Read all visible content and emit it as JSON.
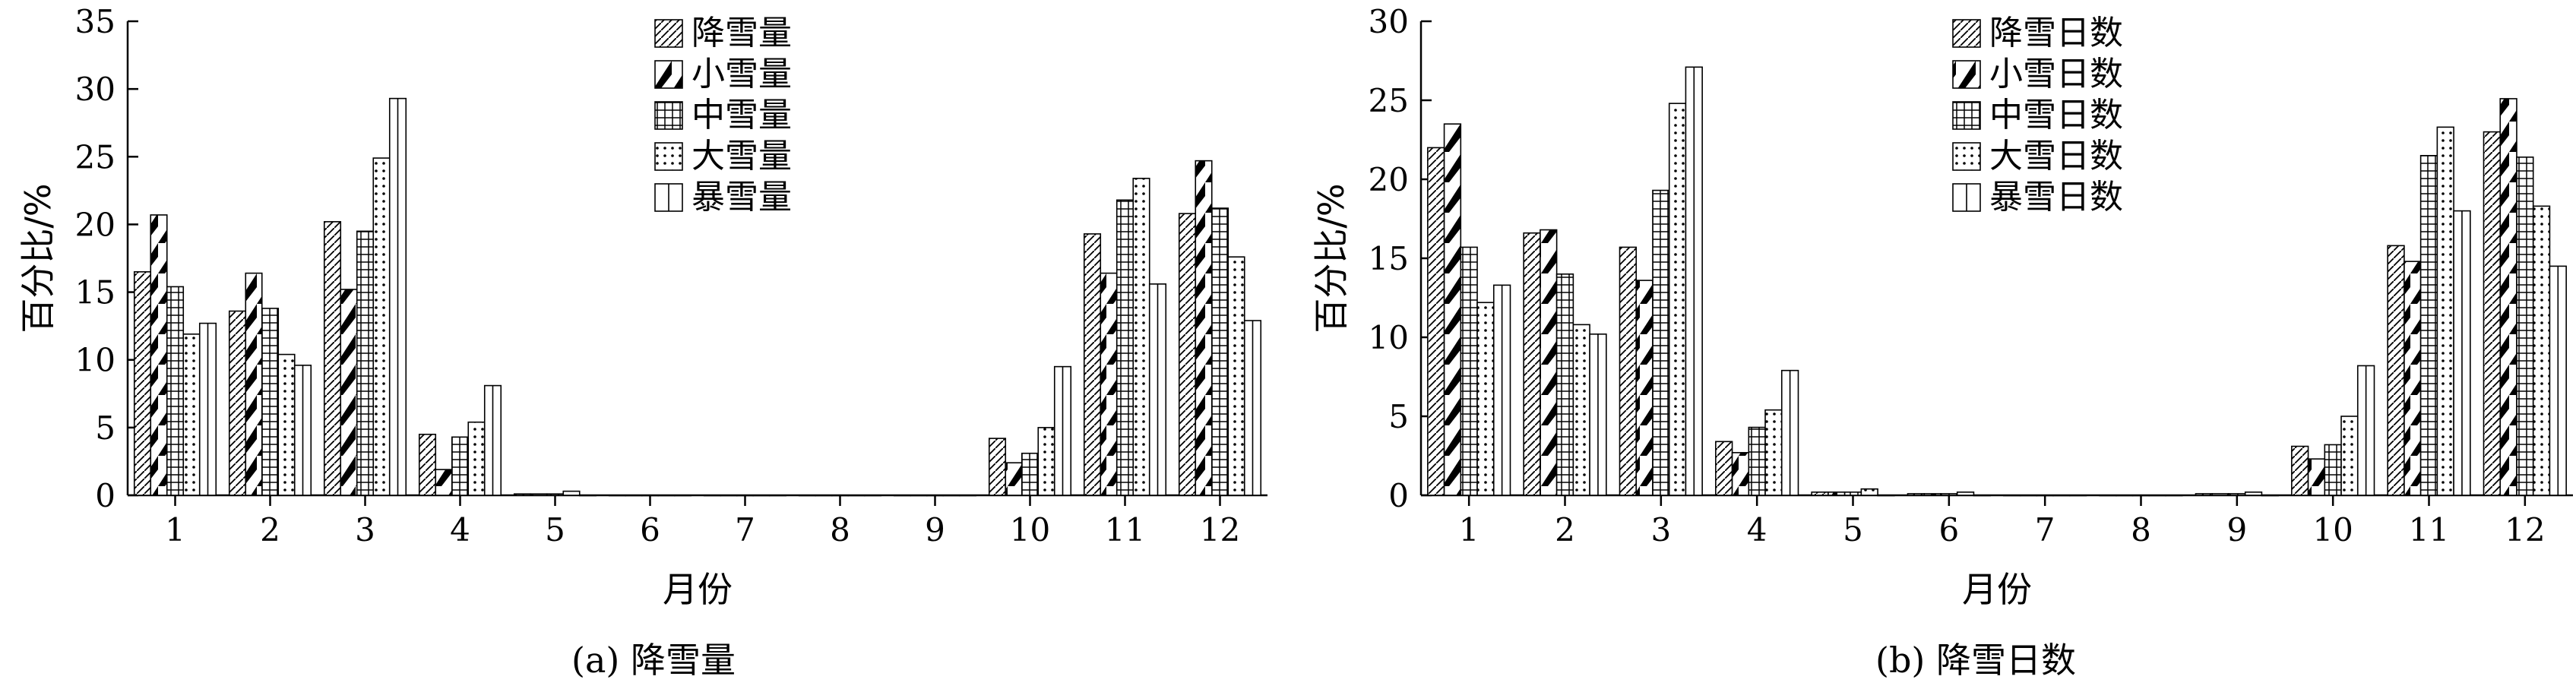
{
  "chart_data": [
    {
      "type": "bar",
      "caption": "(a) 降雪量",
      "ylabel": "百分比/%",
      "xlabel": "月份",
      "ylim": [
        0,
        35
      ],
      "yticks": [
        0,
        5,
        10,
        15,
        20,
        25,
        30,
        35
      ],
      "categories": [
        "1",
        "2",
        "3",
        "4",
        "5",
        "6",
        "7",
        "8",
        "9",
        "10",
        "11",
        "12"
      ],
      "legend_position": "top-center",
      "series": [
        {
          "name": "降雪量",
          "pattern": "diagonal-hatch",
          "values": [
            16.5,
            13.6,
            20.2,
            4.5,
            0.1,
            0,
            0,
            0,
            0,
            4.2,
            19.3,
            20.8
          ]
        },
        {
          "name": "小雪量",
          "pattern": "dark-diagonal",
          "values": [
            20.7,
            16.4,
            15.2,
            1.9,
            0.1,
            0,
            0,
            0,
            0,
            2.4,
            16.4,
            24.7
          ]
        },
        {
          "name": "中雪量",
          "pattern": "grid",
          "values": [
            15.4,
            13.8,
            19.5,
            4.3,
            0.1,
            0,
            0,
            0,
            0,
            3.1,
            21.8,
            21.2
          ]
        },
        {
          "name": "大雪量",
          "pattern": "dots",
          "values": [
            11.9,
            10.4,
            24.9,
            5.4,
            0.3,
            0,
            0,
            0,
            0,
            5.0,
            23.4,
            17.6
          ]
        },
        {
          "name": "暴雪量",
          "pattern": "vertical-half",
          "values": [
            12.7,
            9.6,
            29.3,
            8.1,
            0,
            0,
            0,
            0,
            0,
            9.5,
            15.6,
            12.9
          ]
        }
      ]
    },
    {
      "type": "bar",
      "caption": "(b) 降雪日数",
      "ylabel": "百分比/%",
      "xlabel": "月份",
      "ylim": [
        0,
        30
      ],
      "yticks": [
        0,
        5,
        10,
        15,
        20,
        25,
        30
      ],
      "categories": [
        "1",
        "2",
        "3",
        "4",
        "5",
        "6",
        "7",
        "8",
        "9",
        "10",
        "11",
        "12"
      ],
      "legend_position": "top-center",
      "series": [
        {
          "name": "降雪日数",
          "pattern": "diagonal-hatch",
          "values": [
            22.0,
            16.6,
            15.7,
            3.4,
            0.2,
            0.1,
            0,
            0,
            0.1,
            3.1,
            15.8,
            23.0
          ]
        },
        {
          "name": "小雪日数",
          "pattern": "dark-diagonal",
          "values": [
            23.5,
            16.8,
            13.6,
            2.7,
            0.2,
            0.1,
            0,
            0,
            0.1,
            2.3,
            14.8,
            25.1
          ]
        },
        {
          "name": "中雪日数",
          "pattern": "grid",
          "values": [
            15.7,
            14.0,
            19.3,
            4.3,
            0.2,
            0.1,
            0,
            0,
            0.1,
            3.2,
            21.5,
            21.4
          ]
        },
        {
          "name": "大雪日数",
          "pattern": "dots",
          "values": [
            12.2,
            10.8,
            24.8,
            5.4,
            0.4,
            0.2,
            0,
            0,
            0.2,
            5.0,
            23.3,
            18.3
          ]
        },
        {
          "name": "暴雪日数",
          "pattern": "vertical-half",
          "values": [
            13.3,
            10.2,
            27.1,
            7.9,
            0,
            0,
            0,
            0,
            0,
            8.2,
            18.0,
            14.5
          ]
        }
      ]
    }
  ]
}
